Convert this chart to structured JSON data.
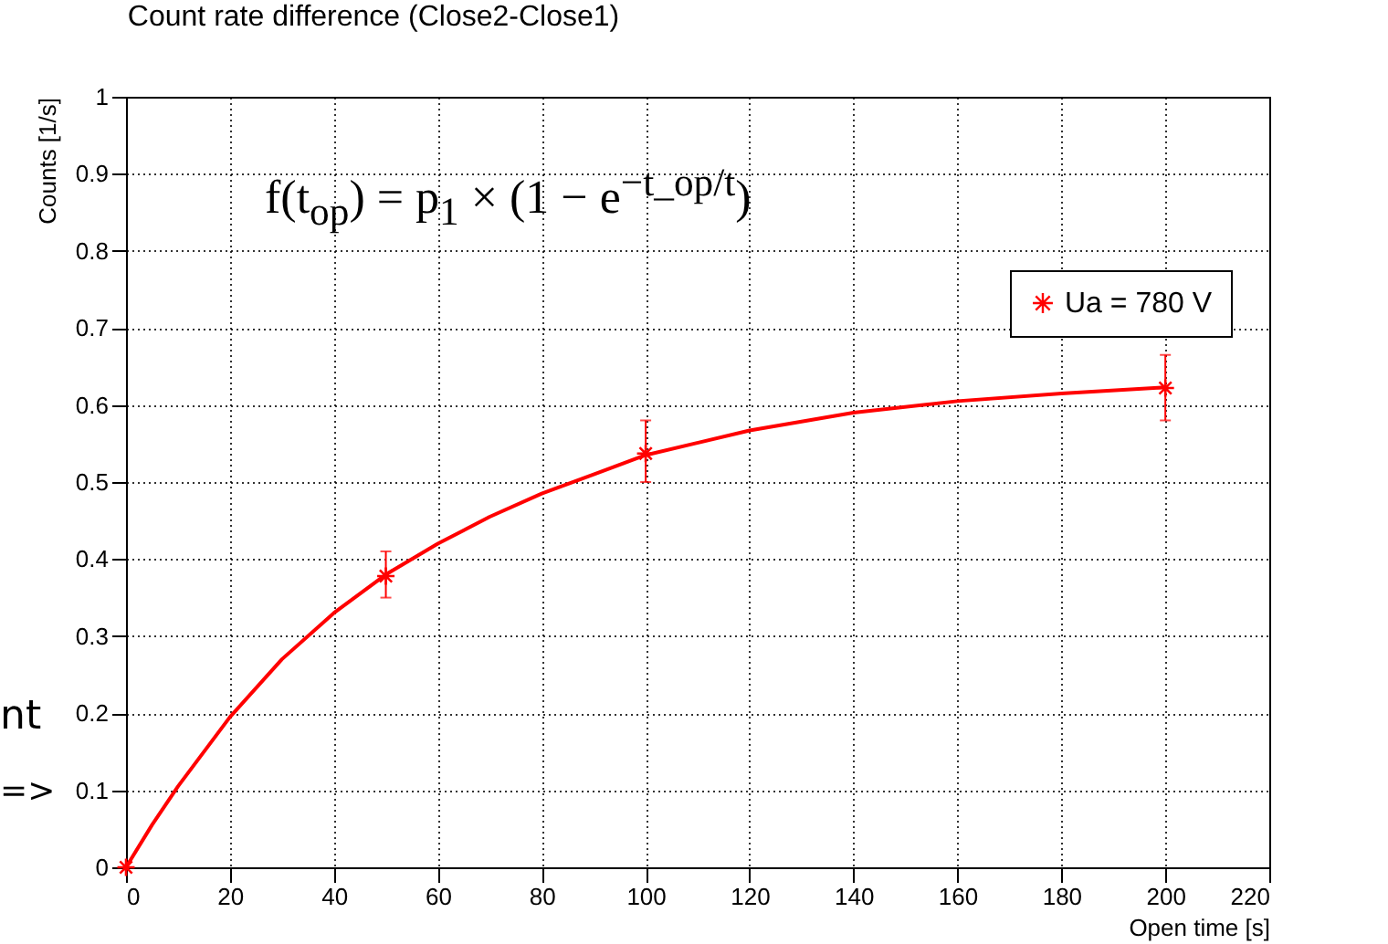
{
  "chart_data": {
    "type": "scatter",
    "title": "Count rate difference (Close2-Close1)",
    "xlabel": "Open time [s]",
    "ylabel": "Counts [1/s]",
    "xlim": [
      0,
      220
    ],
    "xticks": [
      0,
      20,
      40,
      60,
      80,
      100,
      120,
      140,
      160,
      180,
      200,
      220
    ],
    "ylim": [
      0,
      1
    ],
    "yticks": [
      0,
      0.1,
      0.2,
      0.3,
      0.4,
      0.5,
      0.6,
      0.7,
      0.8,
      0.9,
      1
    ],
    "grid": true,
    "legend": "top right",
    "annotations": [
      "f(t$_{op}$) = p$_{1}$ × (1 − e$^{−t_op/t}$)",
      "nt",
      "=>"
    ],
    "series": [
      {
        "name": "Ua = 780 V",
        "type": "scatter",
        "marker": "cross",
        "color": "#ff0000",
        "x": [
          0,
          50,
          100,
          200
        ],
        "values": [
          0,
          0.378,
          0.537,
          0.622
        ],
        "errors": [
          null,
          [
            0.35,
            0.41
          ],
          [
            0.5,
            0.58
          ],
          [
            0.58,
            0.665
          ]
        ]
      },
      {
        "type": "line",
        "marker": "none",
        "color": "#ff0000",
        "x": [
          0,
          5,
          10,
          20,
          30,
          40,
          50,
          60,
          70,
          80,
          90,
          100,
          120,
          140,
          160,
          180,
          200
        ],
        "values": [
          0,
          0.055,
          0.105,
          0.195,
          0.27,
          0.33,
          0.38,
          0.42,
          0.455,
          0.485,
          0.51,
          0.535,
          0.567,
          0.59,
          0.605,
          0.615,
          0.623
        ]
      }
    ]
  }
}
